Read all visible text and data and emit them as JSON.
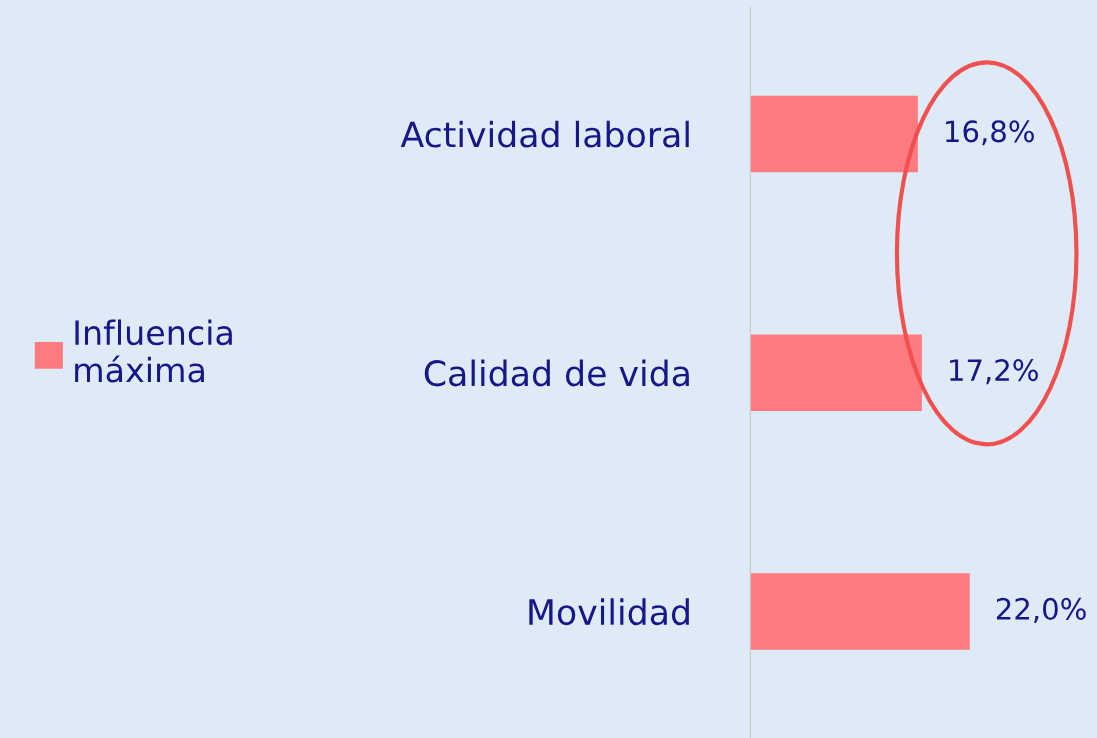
{
  "chart_data": {
    "type": "bar",
    "orientation": "horizontal",
    "categories": [
      "Actividad laboral",
      "Calidad de vida",
      "Movilidad"
    ],
    "series": [
      {
        "name": "Influencia máxima",
        "color": "#ff7b7f",
        "values": [
          16.8,
          17.2,
          22.0
        ],
        "value_labels": [
          "16,8%",
          "17,2%",
          "22,0%"
        ]
      }
    ],
    "legend": "left",
    "grid": false
  }
}
